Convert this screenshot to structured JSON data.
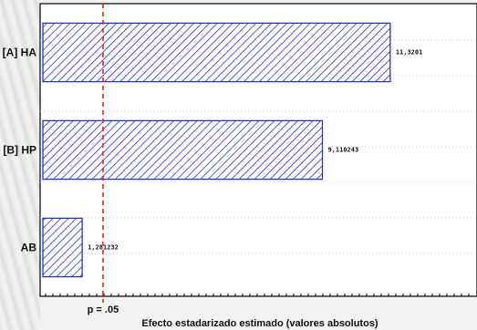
{
  "chart_data": {
    "type": "bar",
    "orientation": "horizontal",
    "categories": [
      "[A] HA",
      "[B] HP",
      "AB"
    ],
    "values": [
      11.3201,
      9.110243,
      1.281232
    ],
    "value_labels": [
      "11,3201",
      "9,110243",
      "1,281232"
    ],
    "xlabel": "Efecto estadarizado estimado (valores absolutos)",
    "ylabel": "",
    "xlim": [
      0,
      14.0
    ],
    "reference_line": {
      "label": "p = .05",
      "value": 1.96,
      "color": "#e8202a"
    },
    "bar_fill": "#2233cc",
    "grid": true,
    "legend": "none"
  }
}
